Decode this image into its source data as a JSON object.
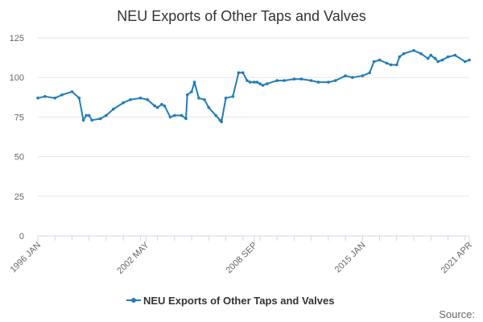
{
  "chart_data": {
    "type": "line",
    "title": "NEU Exports of Other Taps and Valves",
    "xlabel": "",
    "ylabel": "",
    "ylim": [
      0,
      125
    ],
    "y_ticks": [
      0,
      25,
      50,
      75,
      100,
      125
    ],
    "x_range": [
      "1996-01",
      "2021-04"
    ],
    "x_tick_labels": [
      "1996 JAN",
      "2002 MAY",
      "2008 SEP",
      "2015 JAN",
      "2021 APR"
    ],
    "grid": true,
    "legend_position": "bottom",
    "colors": {
      "series": "#1f7db8",
      "grid": "#e6e6e6",
      "axis": "#ccd6eb"
    },
    "series": [
      {
        "name": "NEU Exports of Other Taps and Valves",
        "x": [
          "1996-01",
          "1996-06",
          "1997-01",
          "1997-06",
          "1998-01",
          "1998-06",
          "1998-09",
          "1998-11",
          "1999-01",
          "1999-03",
          "1999-09",
          "2000-01",
          "2000-06",
          "2001-01",
          "2001-06",
          "2002-01",
          "2002-06",
          "2002-11",
          "2003-01",
          "2003-04",
          "2003-06",
          "2003-10",
          "2004-01",
          "2004-06",
          "2004-09",
          "2004-10",
          "2005-01",
          "2005-03",
          "2005-06",
          "2005-10",
          "2006-01",
          "2006-06",
          "2006-09",
          "2006-10",
          "2007-01",
          "2007-06",
          "2007-10",
          "2008-01",
          "2008-04",
          "2008-06",
          "2008-09",
          "2008-11",
          "2009-01",
          "2009-03",
          "2009-06",
          "2010-01",
          "2010-06",
          "2011-01",
          "2011-06",
          "2012-01",
          "2012-06",
          "2013-01",
          "2013-06",
          "2014-01",
          "2014-06",
          "2015-01",
          "2015-06",
          "2015-09",
          "2016-01",
          "2016-06",
          "2016-09",
          "2017-01",
          "2017-03",
          "2017-06",
          "2018-01",
          "2018-06",
          "2018-11",
          "2019-01",
          "2019-04",
          "2019-06",
          "2019-09",
          "2020-01",
          "2020-06",
          "2021-01",
          "2021-04"
        ],
        "values": [
          87,
          88,
          87,
          89,
          91,
          87,
          73,
          76,
          76,
          73,
          74,
          76,
          80,
          84,
          86,
          87,
          86,
          82,
          81,
          83,
          82,
          75,
          76,
          76,
          74,
          89,
          91,
          97,
          87,
          86,
          81,
          76,
          73,
          72,
          87,
          88,
          103,
          103,
          98,
          97,
          97,
          97,
          96,
          95,
          96,
          98,
          98,
          99,
          99,
          98,
          97,
          97,
          98,
          101,
          100,
          101,
          103,
          110,
          111,
          109,
          108,
          108,
          113,
          115,
          117,
          115,
          112,
          114,
          112,
          110,
          111,
          113,
          114,
          110,
          111
        ]
      }
    ],
    "legend": [
      "NEU Exports of Other Taps and Valves"
    ],
    "source_label": "Source:"
  }
}
